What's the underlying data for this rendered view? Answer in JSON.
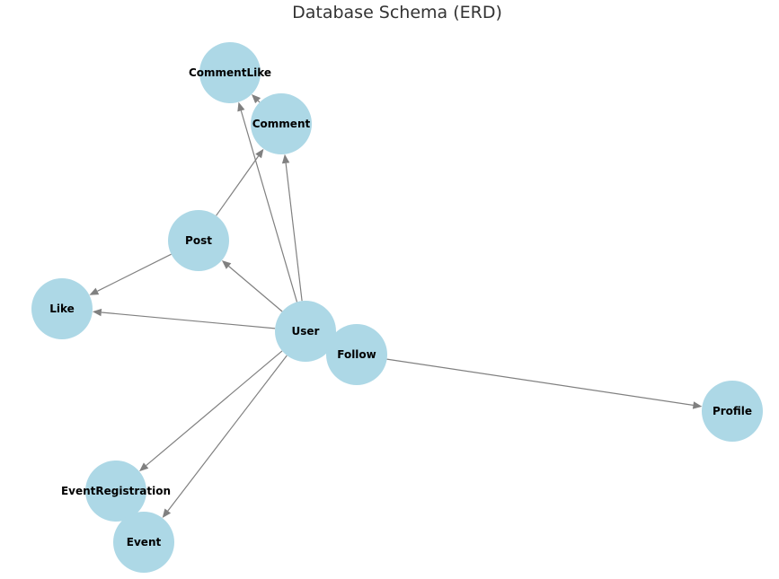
{
  "diagram": {
    "title": "Database Schema (ERD)",
    "node_color": "#add8e6",
    "edge_color": "#808080",
    "label_color": "#000000",
    "title_color": "#333333",
    "nodes": [
      {
        "id": "CommentLike",
        "label": "CommentLike"
      },
      {
        "id": "Comment",
        "label": "Comment"
      },
      {
        "id": "Post",
        "label": "Post"
      },
      {
        "id": "Like",
        "label": "Like"
      },
      {
        "id": "User",
        "label": "User"
      },
      {
        "id": "Follow",
        "label": "Follow"
      },
      {
        "id": "Profile",
        "label": "Profile"
      },
      {
        "id": "EventRegistration",
        "label": "EventRegistration"
      },
      {
        "id": "Event",
        "label": "Event"
      }
    ],
    "edges": [
      {
        "source": "User",
        "target": "Post"
      },
      {
        "source": "User",
        "target": "Comment"
      },
      {
        "source": "User",
        "target": "CommentLike"
      },
      {
        "source": "User",
        "target": "Like"
      },
      {
        "source": "User",
        "target": "EventRegistration"
      },
      {
        "source": "User",
        "target": "Event"
      },
      {
        "source": "Follow",
        "target": "Profile"
      },
      {
        "source": "Post",
        "target": "Comment"
      },
      {
        "source": "Post",
        "target": "Like"
      },
      {
        "source": "Comment",
        "target": "CommentLike"
      }
    ]
  }
}
